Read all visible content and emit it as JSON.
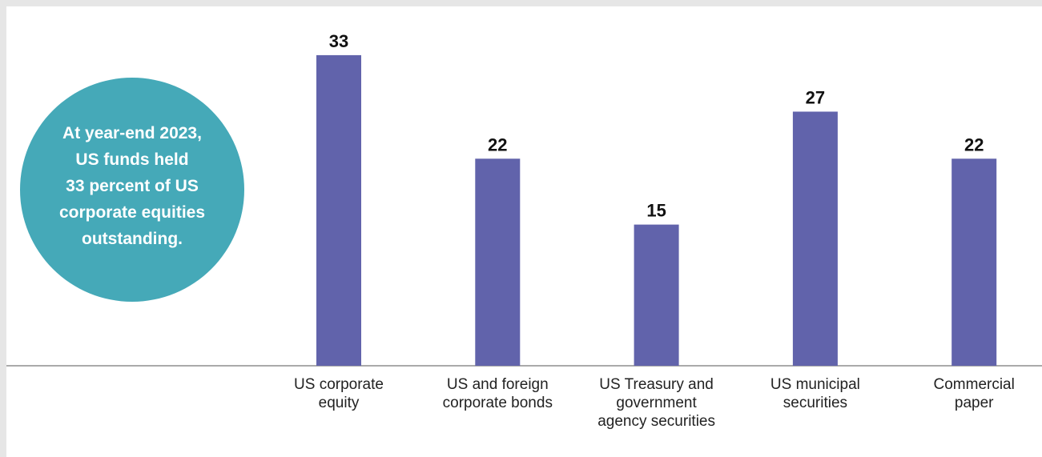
{
  "chart_data": {
    "type": "bar",
    "annotation": "At year-end 2023,\nUS funds held\n33 percent of US\ncorporate equities\noutstanding.",
    "categories": [
      "US corporate\nequity",
      "US and foreign\ncorporate bonds",
      "US Treasury and\ngovernment\nagency securities",
      "US municipal\nsecurities",
      "Commercial\npaper"
    ],
    "values": [
      33,
      22,
      15,
      27,
      22
    ],
    "color": "#6163ab",
    "annotation_color": "#45a9b8"
  }
}
